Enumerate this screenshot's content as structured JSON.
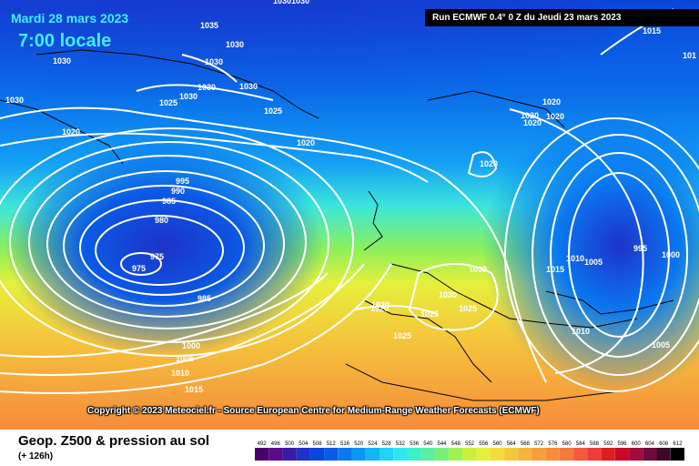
{
  "header": {
    "date": "Mardi 28 mars 2023",
    "time": "7:00 locale",
    "run_info": "Run ECMWF 0.4° 0 Z du Jeudi 23 mars 2023"
  },
  "copyright": "Copyright © 2023 Meteociel.fr - Source European Centre for Medium-Range Weather Forecasts (ECMWF)",
  "footer": {
    "title": "Geop. Z500 & pression au sol",
    "subtitle": "(+ 126h)"
  },
  "legend": {
    "values": [
      "492",
      "496",
      "500",
      "504",
      "508",
      "512",
      "516",
      "520",
      "524",
      "528",
      "532",
      "536",
      "540",
      "544",
      "548",
      "552",
      "556",
      "560",
      "564",
      "568",
      "572",
      "576",
      "580",
      "584",
      "588",
      "592",
      "596",
      "600",
      "604",
      "608",
      "612"
    ],
    "colors": [
      "#4b006e",
      "#5a0a8a",
      "#3c1aa8",
      "#1e32c8",
      "#0a46dc",
      "#0a5ae6",
      "#0a78f0",
      "#0a96f5",
      "#14b4f5",
      "#23d2f5",
      "#32e6f0",
      "#3cf0c8",
      "#5af0a0",
      "#78f078",
      "#a0f050",
      "#c8f03c",
      "#e6f03c",
      "#f5dc3c",
      "#f5c83c",
      "#f5b43c",
      "#f5a03c",
      "#f58c3c",
      "#f5783c",
      "#f55a3c",
      "#f03c3c",
      "#dc1e1e",
      "#c80a28",
      "#a00a3c",
      "#6e0a3c",
      "#3c0a28",
      "#000000"
    ]
  },
  "pressure_labels": [
    "1030",
    "1035",
    "1030",
    "1030",
    "1030",
    "1030",
    "1025",
    "1030",
    "1030",
    "1030",
    "1025",
    "1030",
    "1020",
    "1020",
    "995",
    "990",
    "985",
    "980",
    "975",
    "975",
    "985",
    "1000",
    "1005",
    "1010",
    "1015",
    "1020",
    "1020",
    "1020",
    "1020",
    "1020",
    "1020",
    "1030",
    "1030",
    "1025",
    "1025",
    "1020",
    "1025",
    "1015",
    "1010",
    "1005",
    "995",
    "1000",
    "1010",
    "1005",
    "1015",
    "101"
  ],
  "colors": {
    "contour": "#ffffff",
    "coast": "#000000"
  }
}
